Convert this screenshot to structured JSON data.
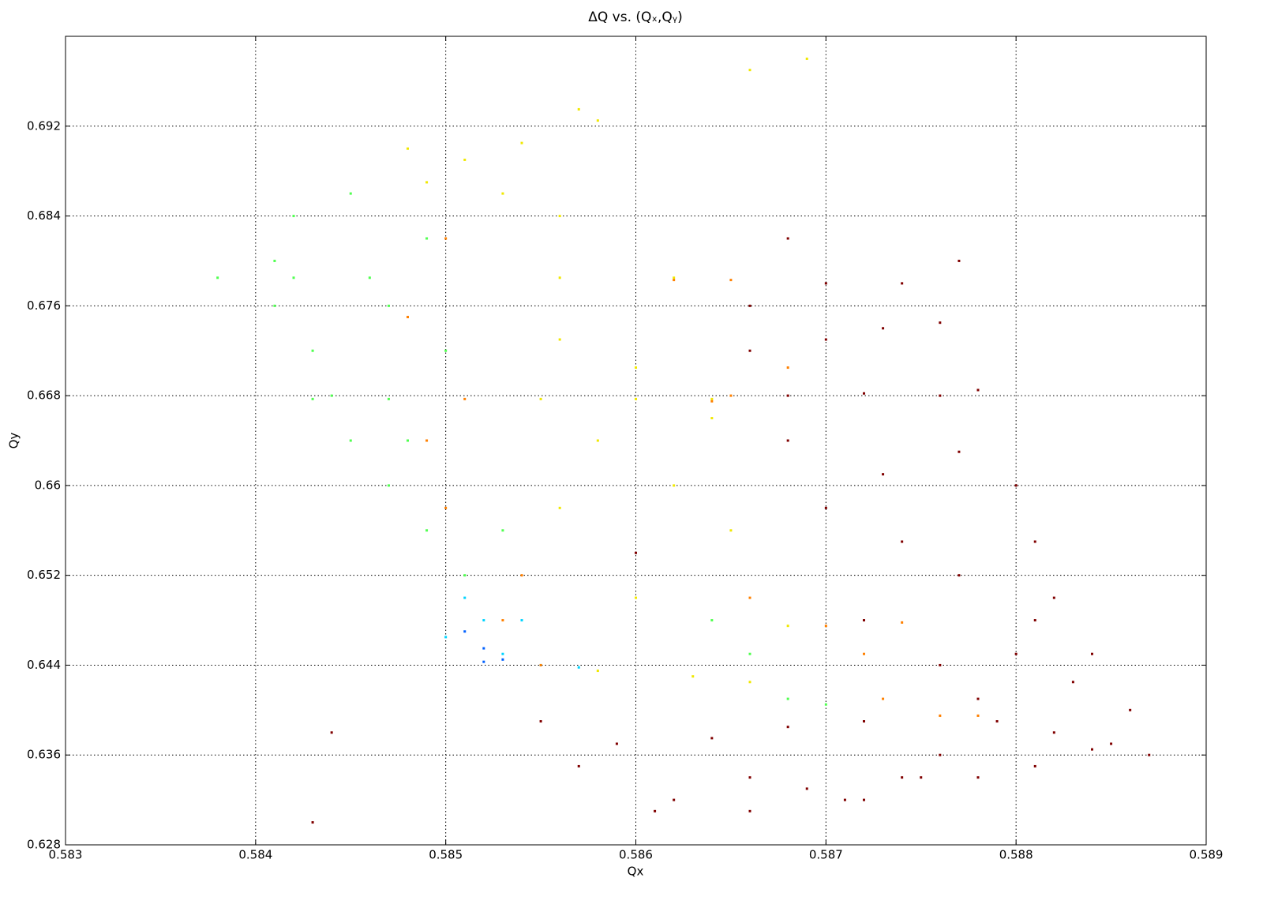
{
  "chart_data": {
    "type": "scatter",
    "title": "ΔQ vs. (Qₓ,Qᵧ)",
    "x_label": "Qx",
    "y_label": "Qy",
    "xlim": [
      0.583,
      0.589
    ],
    "xticks": [
      0.583,
      0.584,
      0.585,
      0.586,
      0.587,
      0.588,
      0.589
    ],
    "ylim": [
      0.628,
      0.7
    ],
    "yticks": [
      0.628,
      0.636,
      0.644,
      0.652,
      0.66,
      0.668,
      0.676,
      0.684,
      0.692
    ],
    "grid": true,
    "series": [
      {
        "color": "#800000",
        "x": [
          0.588,
          0.5881,
          0.5882,
          0.5884,
          0.5886,
          0.5887,
          0.5885,
          0.5882,
          0.5879,
          0.5876,
          0.5875,
          0.5878,
          0.5881,
          0.5884,
          0.588,
          0.5881,
          0.5877,
          0.5874,
          0.587,
          0.5873,
          0.5877,
          0.5868,
          0.586,
          0.5872,
          0.5876,
          0.5878,
          0.5883,
          0.5868,
          0.5872,
          0.5876,
          0.5878,
          0.5866,
          0.587,
          0.5873,
          0.5876,
          0.5866,
          0.587,
          0.5874,
          0.5877,
          0.5868,
          0.5857,
          0.5862,
          0.5866,
          0.5869,
          0.5872,
          0.5874,
          0.5859,
          0.5864,
          0.5868,
          0.5872,
          0.5855,
          0.5861,
          0.5866,
          0.5871,
          0.5843,
          0.5844
        ],
        "values": [
          0.66,
          0.655,
          0.65,
          0.645,
          0.64,
          0.636,
          0.637,
          0.638,
          0.639,
          0.636,
          0.634,
          0.634,
          0.635,
          0.6365,
          0.645,
          0.648,
          0.652,
          0.655,
          0.658,
          0.661,
          0.663,
          0.664,
          0.654,
          0.648,
          0.644,
          0.641,
          0.6425,
          0.668,
          0.6682,
          0.668,
          0.6685,
          0.672,
          0.673,
          0.674,
          0.6745,
          0.676,
          0.678,
          0.678,
          0.68,
          0.682,
          0.635,
          0.632,
          0.634,
          0.633,
          0.632,
          0.634,
          0.637,
          0.6375,
          0.6385,
          0.639,
          0.639,
          0.631,
          0.631,
          0.632,
          0.63,
          0.638
        ]
      },
      {
        "color": "#50ff50",
        "x": [
          0.5842,
          0.5841,
          0.5841,
          0.5843,
          0.5844,
          0.5845,
          0.5847,
          0.5849,
          0.5851,
          0.5845,
          0.5849,
          0.5847,
          0.585,
          0.5848,
          0.5853,
          0.5838,
          0.5842,
          0.5846,
          0.5843,
          0.5847,
          0.5868,
          0.587,
          0.5866,
          0.5864
        ],
        "values": [
          0.684,
          0.68,
          0.676,
          0.672,
          0.668,
          0.664,
          0.66,
          0.656,
          0.652,
          0.686,
          0.682,
          0.676,
          0.672,
          0.664,
          0.656,
          0.6785,
          0.6785,
          0.6785,
          0.6677,
          0.6677,
          0.641,
          0.6405,
          0.645,
          0.648
        ]
      },
      {
        "color": "#00d4ff",
        "x": [
          0.5851,
          0.5852,
          0.585,
          0.5853,
          0.5855,
          0.5857,
          0.5854
        ],
        "values": [
          0.65,
          0.648,
          0.6465,
          0.645,
          0.644,
          0.6438,
          0.648
        ]
      },
      {
        "color": "#0060ff",
        "x": [
          0.5852,
          0.5853,
          0.5852,
          0.5851
        ],
        "values": [
          0.6443,
          0.6445,
          0.6455,
          0.647
        ]
      },
      {
        "color": "#f0e800",
        "x": [
          0.5848,
          0.5851,
          0.5854,
          0.5857,
          0.5849,
          0.5853,
          0.5856,
          0.5858,
          0.5866,
          0.5869,
          0.5856,
          0.586,
          0.5858,
          0.5862,
          0.5865,
          0.586,
          0.5863,
          0.5866,
          0.5858,
          0.5855,
          0.586,
          0.5864,
          0.5862,
          0.5856,
          0.5868,
          0.5864,
          0.5856
        ],
        "values": [
          0.69,
          0.689,
          0.6905,
          0.6935,
          0.687,
          0.686,
          0.684,
          0.6925,
          0.697,
          0.698,
          0.673,
          0.6705,
          0.664,
          0.66,
          0.656,
          0.65,
          0.643,
          0.6425,
          0.6435,
          0.6677,
          0.6677,
          0.6677,
          0.6785,
          0.6785,
          0.6475,
          0.666,
          0.658
        ]
      },
      {
        "color": "#ff8000",
        "x": [
          0.5855,
          0.5853,
          0.585,
          0.5849,
          0.5854,
          0.5862,
          0.5865,
          0.5864,
          0.5851,
          0.5848,
          0.585,
          0.5865,
          0.5868,
          0.5873,
          0.5876,
          0.5878,
          0.587,
          0.5874,
          0.5866,
          0.5872
        ],
        "values": [
          0.644,
          0.648,
          0.658,
          0.664,
          0.652,
          0.6783,
          0.6783,
          0.6675,
          0.6677,
          0.675,
          0.682,
          0.668,
          0.6705,
          0.641,
          0.6395,
          0.6395,
          0.6475,
          0.6478,
          0.65,
          0.645
        ]
      }
    ]
  }
}
